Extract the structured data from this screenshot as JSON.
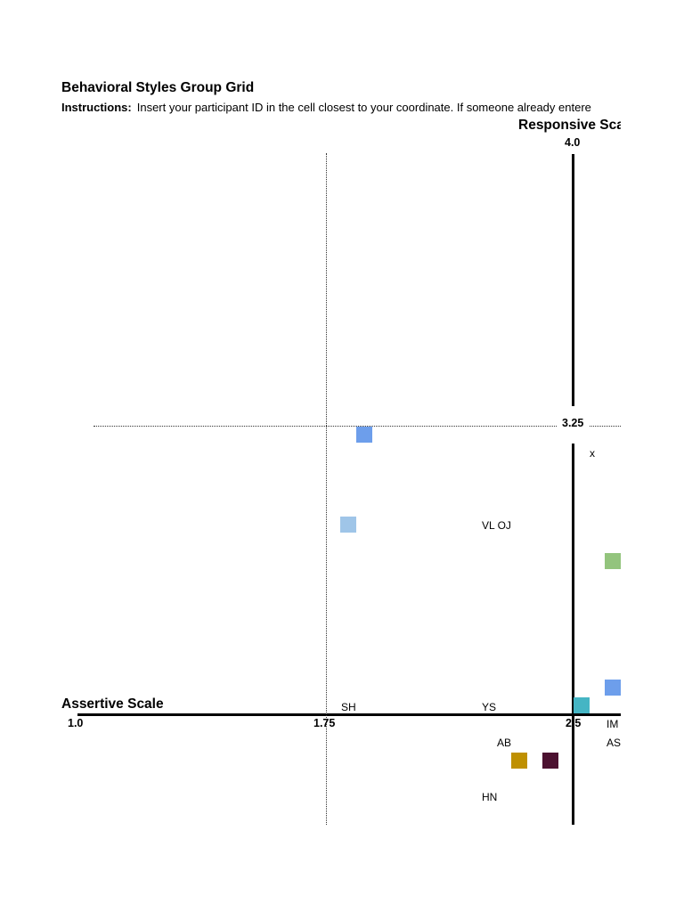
{
  "header": {
    "title": "Behavioral Styles Group Grid",
    "instructions_label": "Instructions:",
    "instructions_text": "Insert your participant ID in the cell closest to your coordinate. If someone already entere"
  },
  "chart_data": {
    "type": "scatter",
    "title": "Behavioral Styles Group Grid",
    "xlabel": "Assertive Scale",
    "ylabel": "Responsive Scal",
    "y_tick_top": "4.0",
    "y_tick_mid": "3.25",
    "x_ticks": [
      "1.0",
      "1.75",
      "2.5"
    ],
    "grid": "dotted reference lines at 1.75 and 3.25",
    "cell_labels": [
      {
        "text": "x"
      },
      {
        "text": "VL OJ"
      },
      {
        "text": "SH"
      },
      {
        "text": "YS"
      },
      {
        "text": "IM"
      },
      {
        "text": "AB"
      },
      {
        "text": "AS"
      },
      {
        "text": "HN"
      }
    ],
    "markers": [
      {
        "color": "#6d9eeb"
      },
      {
        "color": "#9fc5e8"
      },
      {
        "color": "#93c47d"
      },
      {
        "color": "#6d9eeb"
      },
      {
        "color": "#45b5c4"
      },
      {
        "color": "#bf9000"
      },
      {
        "color": "#4c1130"
      }
    ]
  }
}
